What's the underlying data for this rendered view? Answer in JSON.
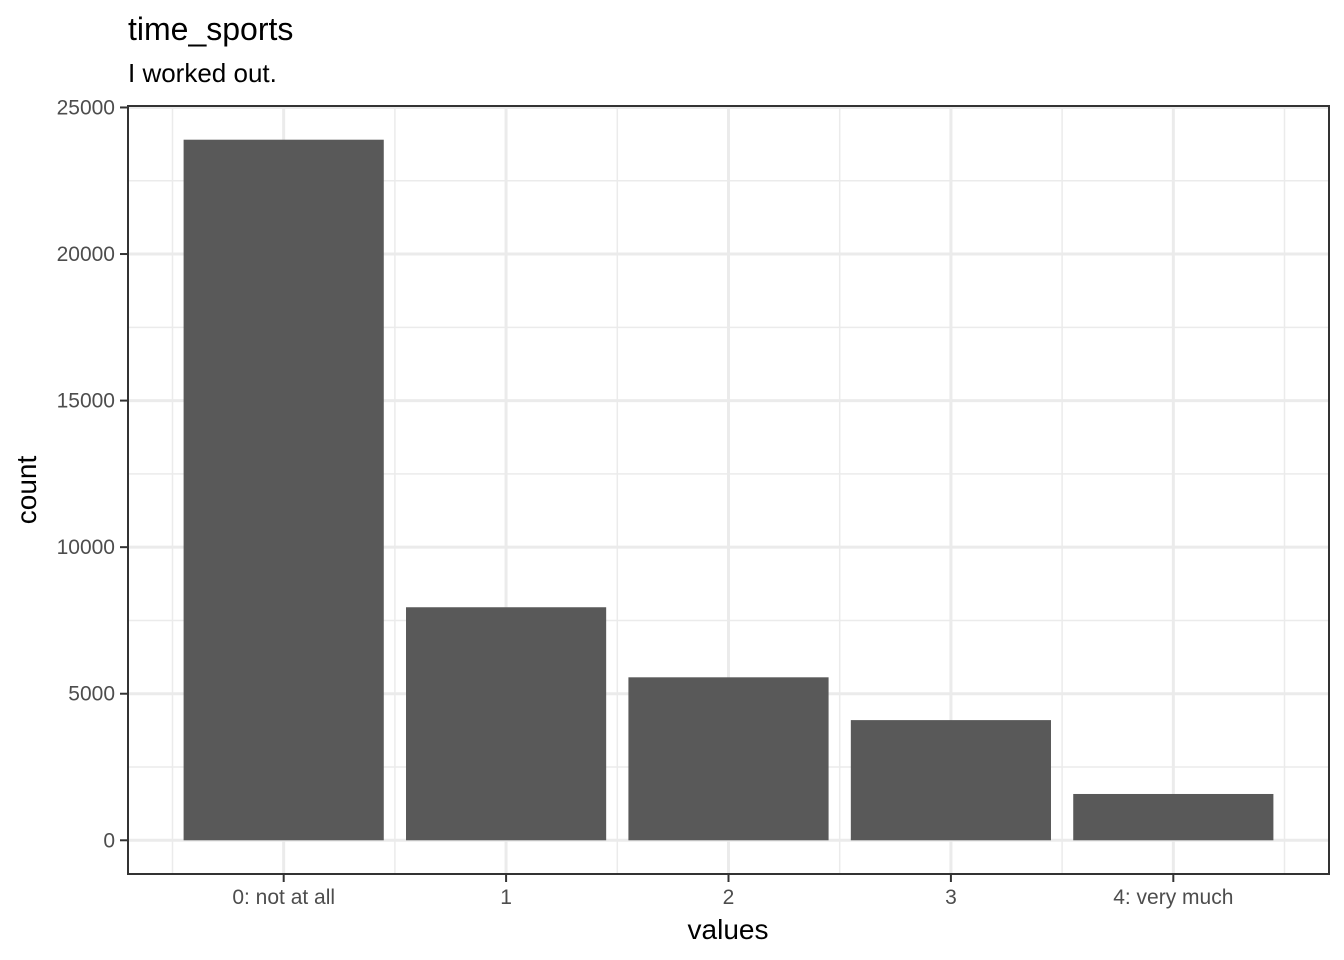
{
  "chart_data": {
    "type": "bar",
    "title": "time_sports",
    "subtitle": "I worked out.",
    "xlabel": "values",
    "ylabel": "count",
    "categories": [
      "0: not at all",
      "1",
      "2",
      "3",
      "4: very much"
    ],
    "values": [
      23900,
      7950,
      5560,
      4100,
      1580
    ],
    "ylim": [
      -1150,
      25050
    ],
    "yticks": [
      0,
      5000,
      10000,
      15000,
      20000,
      25000
    ],
    "grid": true,
    "legend": "none",
    "colors": {
      "bar": "#595959",
      "grid": "#ebebeb",
      "panel_border": "#333333",
      "tick": "#333333"
    }
  }
}
